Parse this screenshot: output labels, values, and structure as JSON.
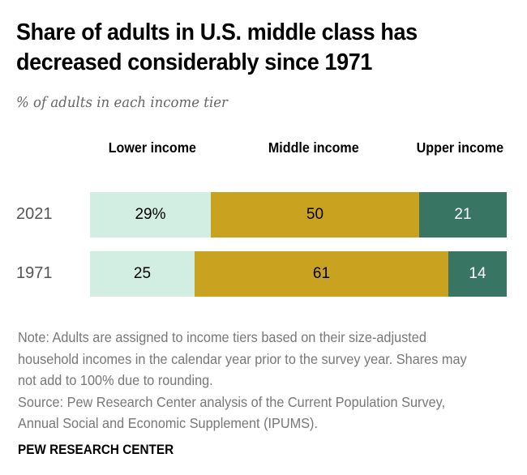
{
  "header": {
    "title": "Share of adults in U.S. middle class has decreased considerably since 1971",
    "subtitle": "% of adults in each income tier"
  },
  "chart_data": {
    "type": "bar",
    "orientation": "horizontal",
    "stacked": true,
    "title": "Share of adults in U.S. middle class has decreased considerably since 1971",
    "subtitle": "% of adults in each income tier",
    "categories": [
      "2021",
      "1971"
    ],
    "series": [
      {
        "name": "Lower income",
        "color": "#d2ede2",
        "text_color": "#000000",
        "values": [
          29,
          25
        ],
        "labels": [
          "29%",
          "25"
        ]
      },
      {
        "name": "Middle income",
        "color": "#c9a21f",
        "text_color": "#000000",
        "values": [
          50,
          61
        ],
        "labels": [
          "50",
          "61"
        ]
      },
      {
        "name": "Upper income",
        "color": "#387563",
        "text_color": "#ffffff",
        "values": [
          21,
          14
        ],
        "labels": [
          "21",
          "14"
        ]
      }
    ],
    "xlim": [
      0,
      100
    ],
    "grid": false,
    "legend": "top"
  },
  "footer": {
    "note": "Note: Adults are assigned to income tiers based on their size-adjusted household incomes in the calendar year prior to the survey year. Shares may not add to 100% due to rounding.",
    "source": "Source: Pew Research Center analysis of the Current Population Survey, Annual Social and Economic Supplement (IPUMS).",
    "brand": "PEW RESEARCH CENTER"
  }
}
